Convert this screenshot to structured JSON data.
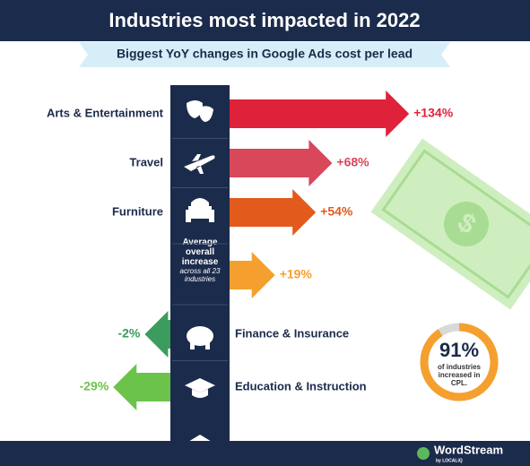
{
  "chart_data": {
    "type": "arrow-bar",
    "title": "Industries most impacted in 2022",
    "subtitle": "Biggest YoY changes in Google Ads cost per lead",
    "categories": [
      "Arts & Entertainment",
      "Travel",
      "Furniture",
      "Average overall increase",
      "Finance & Insurance",
      "Education & Instruction"
    ],
    "average_note": "across all 23 industries",
    "values": [
      134,
      68,
      54,
      19,
      -2,
      -29
    ],
    "value_labels": [
      "+134%",
      "+68%",
      "+54%",
      "+19%",
      "-2%",
      "-29%"
    ],
    "colors": [
      "#e0213a",
      "#d8475a",
      "#e25a1c",
      "#f5a02e",
      "#3b9c5e",
      "#6cc34b"
    ],
    "callout": {
      "value": 91,
      "label": "91%",
      "text": "of industries increased in CPL."
    },
    "logo": "WordStream",
    "logo_sub": "by LOCALiQ"
  }
}
